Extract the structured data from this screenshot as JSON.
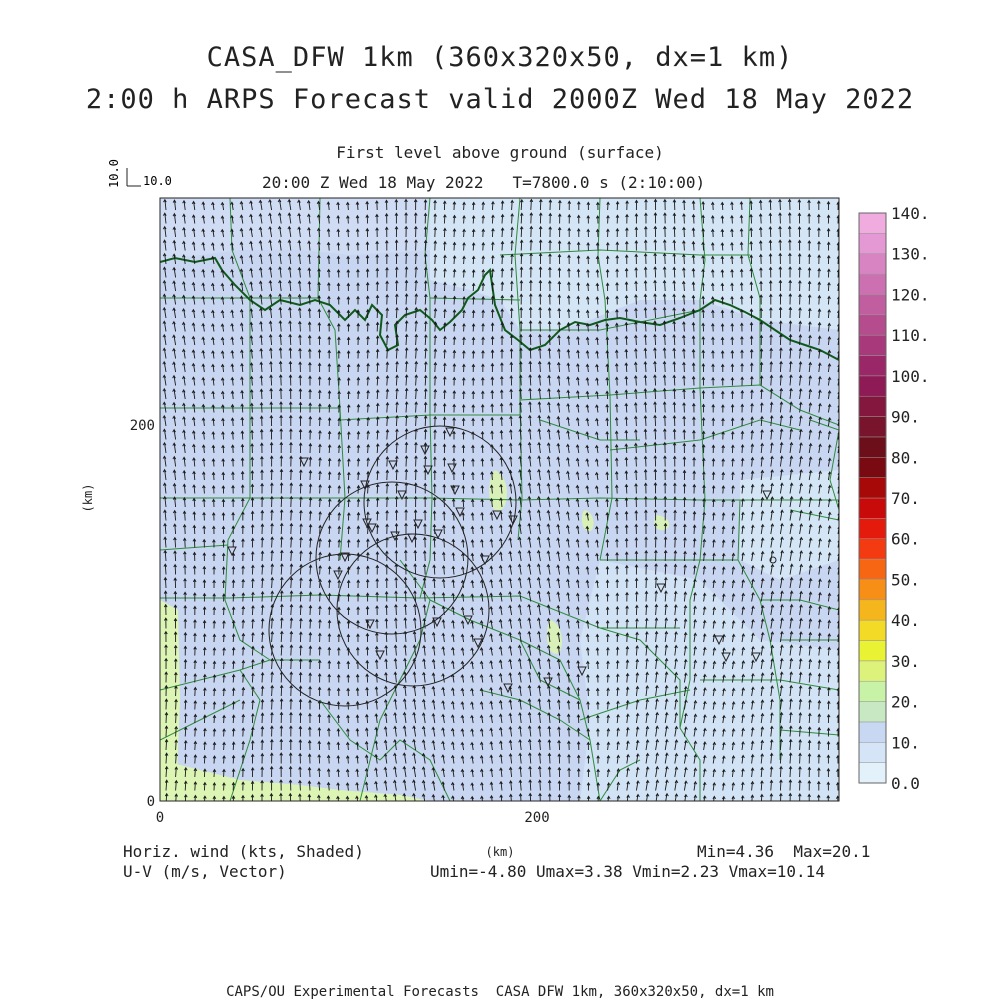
{
  "header": {
    "title_line1": "CASA_DFW 1km (360x320x50, dx=1 km)",
    "title_line2": "2:00 h ARPS Forecast valid 2000Z Wed 18 May 2022",
    "level_label": "First level above ground (surface)",
    "time_label": "20:00 Z Wed 18 May 2022   T=7800.0 s (2:10:00)"
  },
  "vector_key": {
    "label_vertical": "10.0",
    "label_horizontal": "10.0"
  },
  "axes": {
    "y_label": "(km)",
    "x_label": "(km)",
    "x_ticks": [
      "0",
      "200"
    ],
    "y_ticks": [
      "0",
      "200"
    ],
    "x_range": [
      0,
      360
    ],
    "y_range": [
      0,
      320
    ]
  },
  "colorbar": {
    "labels": [
      "0.0",
      "10.",
      "20.",
      "30.",
      "40.",
      "50.",
      "60.",
      "70.",
      "80.",
      "90.",
      "100.",
      "110.",
      "120.",
      "130.",
      "140."
    ],
    "colors": [
      "#e2f1fa",
      "#d6e4f7",
      "#c9d8f2",
      "#c8e7c3",
      "#c8f2a5",
      "#dcf27a",
      "#e9f233",
      "#f2da26",
      "#f5b51c",
      "#f78e16",
      "#f76612",
      "#f43a10",
      "#e41a0d",
      "#c80a0a",
      "#a70909",
      "#7a0a12",
      "#6c0f1a",
      "#78152c",
      "#83173e",
      "#8e1b55",
      "#9a2868",
      "#a83a7c",
      "#b44c8e",
      "#c05e9f",
      "#cc70b1",
      "#d884c2",
      "#e498d4",
      "#f0acdf"
    ]
  },
  "footer": {
    "left_line1": "Horiz. wind (kts, Shaded)",
    "left_line2": "U-V (m/s, Vector)",
    "minmax": "Min=4.36  Max=20.1",
    "uv_minmax": "Umin=-4.80 Umax=3.38 Vmin=2.23 Vmax=10.14",
    "credit": "CAPS/OU Experimental Forecasts  CASA DFW 1km, 360x320x50, dx=1 km"
  },
  "map": {
    "field_color": "#c9d6f2",
    "light_color": "#d6ecf4",
    "green_color": "#ddf5b4",
    "county_color": "#2e8b3a",
    "state_color": "#0f5a1a",
    "radar_rings_km": 20
  }
}
